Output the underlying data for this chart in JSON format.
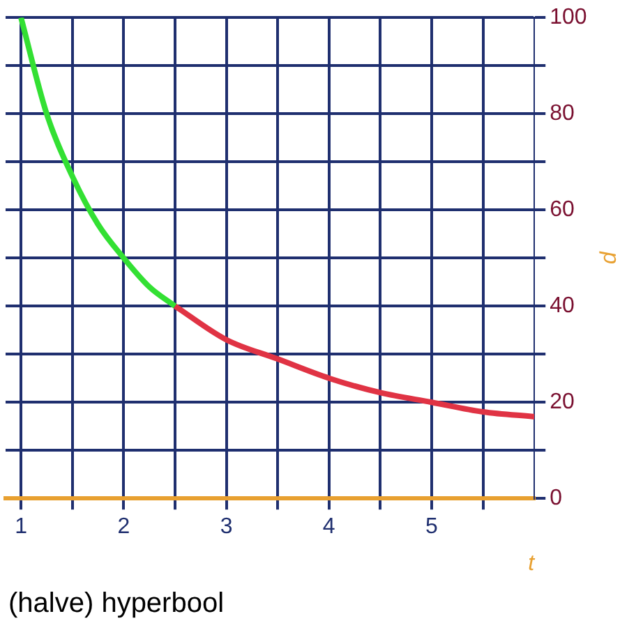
{
  "chart_data": {
    "type": "line",
    "xlabel": "t",
    "ylabel": "p",
    "annotations": [
      "(halve) hyperbool"
    ],
    "xlim": [
      0.85,
      6
    ],
    "xticks": [
      1,
      {
        "value": 1.5,
        "label": null
      },
      2,
      {
        "value": 2.5,
        "label": null
      },
      3,
      {
        "value": 3.5,
        "label": null
      },
      4,
      {
        "value": 4.5,
        "label": null
      },
      5,
      {
        "value": 5.5,
        "label": null
      }
    ],
    "ylim": [
      0,
      100
    ],
    "yticks": [
      0,
      {
        "value": 10,
        "label": null
      },
      20,
      {
        "value": 30,
        "label": null
      },
      40,
      {
        "value": 50,
        "label": null
      },
      60,
      {
        "value": 70,
        "label": null
      },
      80,
      {
        "value": 90,
        "label": null
      },
      100
    ],
    "grid": true,
    "legend": false,
    "marker": "none",
    "line_style": "solid",
    "series": [
      {
        "color": "#33e033",
        "x": [
          1,
          1.25,
          1.5,
          1.75,
          2,
          2.25,
          2.5
        ],
        "values": [
          100,
          80,
          67,
          57,
          50,
          44,
          40
        ]
      },
      {
        "color": "#e03344",
        "x": [
          2.5,
          3,
          3.5,
          4,
          4.5,
          5,
          5.5,
          6
        ],
        "values": [
          40,
          33,
          29,
          25,
          22,
          20,
          18,
          17
        ]
      }
    ]
  }
}
